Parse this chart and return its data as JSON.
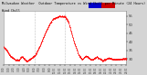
{
  "bg_color": "#d4d4d4",
  "plot_bg_color": "#ffffff",
  "line_color": "#ff0000",
  "title_text": "Milwaukee Weather  Outdoor Temperature vs Wind Chill per Minute (24 Hours)",
  "legend_blue": "#0000cc",
  "legend_red": "#cc0000",
  "ylim": [
    27,
    58
  ],
  "yticks": [
    30,
    35,
    40,
    45,
    50,
    55
  ],
  "ytick_labels": [
    "30",
    "35",
    "40",
    "45",
    "50",
    "55"
  ],
  "xlim": [
    0,
    1440
  ],
  "xtick_positions": [
    0,
    60,
    120,
    180,
    240,
    300,
    360,
    420,
    480,
    540,
    600,
    660,
    720,
    780,
    840,
    900,
    960,
    1020,
    1080,
    1140,
    1200,
    1260,
    1320,
    1380,
    1440
  ],
  "vline_positions": [
    360,
    720
  ],
  "n_points": 1440
}
